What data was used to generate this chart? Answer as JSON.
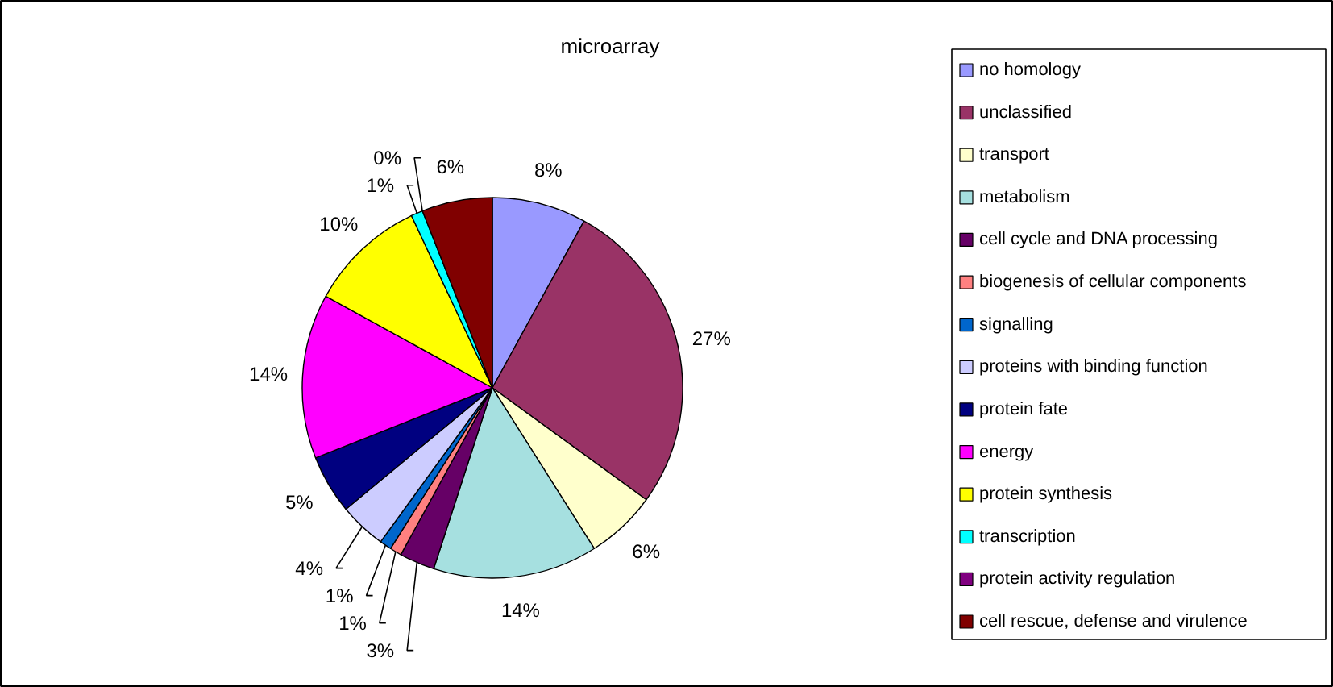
{
  "chart_data": {
    "type": "pie",
    "title": "microarray",
    "categories": [
      "no homology",
      "unclassified",
      "transport",
      "metabolism",
      "cell cycle and DNA processing",
      "biogenesis of cellular components",
      "signalling",
      "proteins with binding function",
      "protein fate",
      "energy",
      "protein synthesis",
      "transcription",
      "protein activity regulation",
      "cell rescue, defense and virulence"
    ],
    "values": [
      8,
      27,
      6,
      14,
      3,
      1,
      1,
      4,
      5,
      14,
      10,
      1,
      0,
      6
    ],
    "value_labels": [
      "8%",
      "27%",
      "6%",
      "14%",
      "3%",
      "1%",
      "1%",
      "4%",
      "5%",
      "14%",
      "10%",
      "1%",
      "0%",
      "6%"
    ],
    "colors": [
      "#9999ff",
      "#993366",
      "#ffffcc",
      "#a6e0e0",
      "#660066",
      "#ff8080",
      "#0066cc",
      "#ccccff",
      "#000080",
      "#ff00ff",
      "#ffff00",
      "#00ffff",
      "#800080",
      "#800000"
    ],
    "legend": "right"
  }
}
